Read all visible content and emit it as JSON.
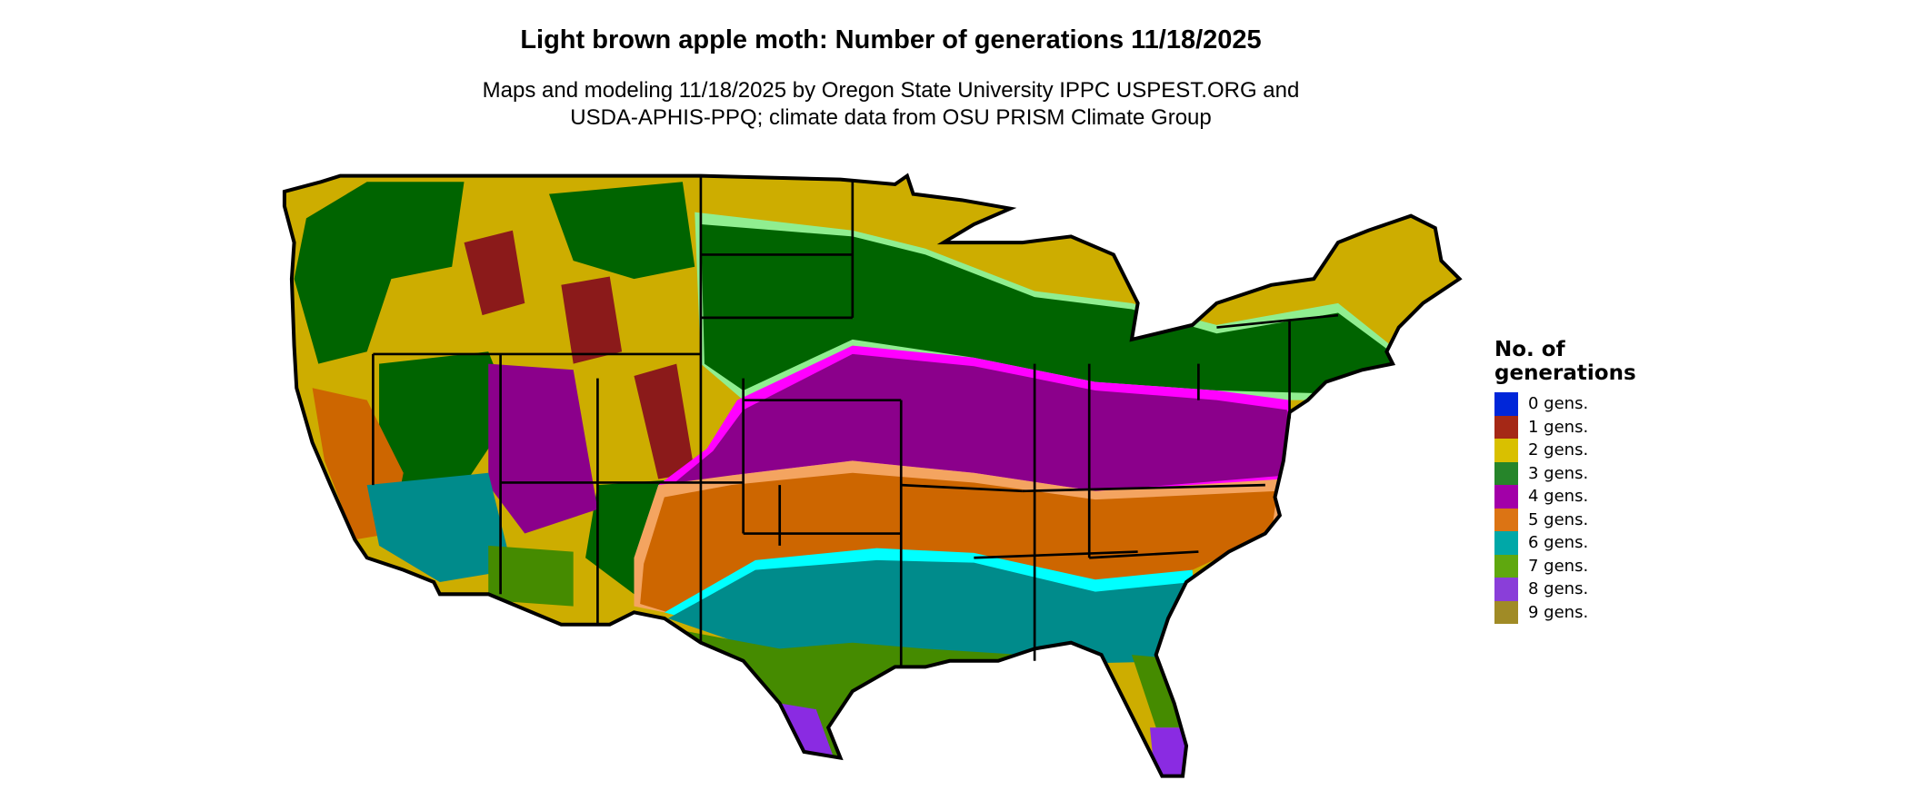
{
  "title": "Light brown apple moth: Number of generations 11/18/2025",
  "subtitle_line1": "Maps and modeling 11/18/2025 by Oregon State University IPPC USPEST.ORG and",
  "subtitle_line2": "USDA-APHIS-PPQ; climate data from OSU PRISM Climate Group",
  "legend": {
    "title_line1": "No. of",
    "title_line2": "generations",
    "items": [
      {
        "label": "0 gens.",
        "color": "#0026d9"
      },
      {
        "label": "1 gens.",
        "color": "#a52816"
      },
      {
        "label": "2 gens.",
        "color": "#d9c000"
      },
      {
        "label": "3 gens.",
        "color": "#26852a"
      },
      {
        "label": "4 gens.",
        "color": "#a200a8"
      },
      {
        "label": "5 gens.",
        "color": "#dc7414"
      },
      {
        "label": "6 gens.",
        "color": "#00a8a8"
      },
      {
        "label": "7 gens.",
        "color": "#5fa80f"
      },
      {
        "label": "8 gens.",
        "color": "#8a3ed9"
      },
      {
        "label": "9 gens.",
        "color": "#a08b26"
      }
    ]
  },
  "map_colors": {
    "1": "#8b1a1a",
    "2": "#cdad00",
    "3": "#006400",
    "3_light": "#90ee90",
    "4": "#8b008b",
    "4_light": "#ff00ff",
    "5": "#cd6600",
    "5_light": "#f4a460",
    "6": "#008b8b",
    "6_light": "#00ffff",
    "7": "#458b00",
    "7_light": "#adff2f",
    "8": "#8a2be2"
  }
}
